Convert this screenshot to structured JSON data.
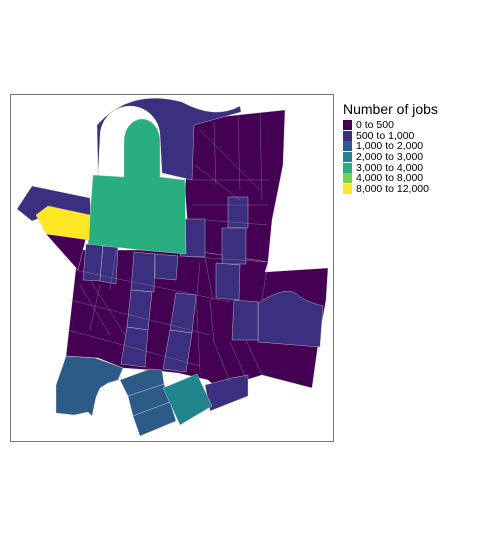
{
  "map": {
    "type": "choropleth",
    "legend": {
      "title": "Number of jobs",
      "classes": [
        {
          "label": "0 to 500",
          "color": "#440154"
        },
        {
          "label": "500 to 1,000",
          "color": "#3B2F7F"
        },
        {
          "label": "1,000 to 2,000",
          "color": "#2C5B88"
        },
        {
          "label": "2,000 to 3,000",
          "color": "#21858D"
        },
        {
          "label": "3,000 to 4,000",
          "color": "#29AF7F"
        },
        {
          "label": "4,000 to 8,000",
          "color": "#7AD151"
        },
        {
          "label": "8,000 to 12,000",
          "color": "#FDE725"
        }
      ]
    }
  }
}
